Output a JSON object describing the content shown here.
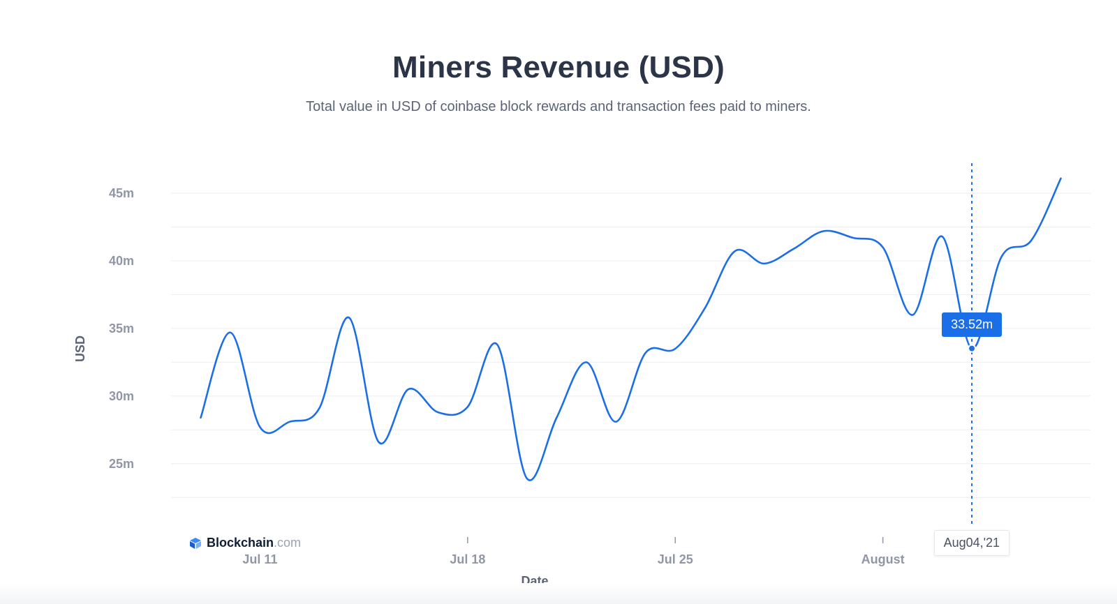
{
  "header": {
    "title": "Miners Revenue (USD)",
    "subtitle": "Total value in USD of coinbase block rewards and transaction fees paid to miners."
  },
  "brand": {
    "name": "Blockchain",
    "suffix": ".com",
    "icon": "blockchain-logo-icon"
  },
  "tooltip": {
    "value_label": "33.52m",
    "date_label": "Aug04,'21",
    "date": "2021-08-04",
    "value": 33.52
  },
  "colors": {
    "line": "#1a6fe8",
    "grid": "#eceef1",
    "tooltip_bg": "#1a6fe8"
  },
  "chart_data": {
    "type": "line",
    "title": "Miners Revenue (USD)",
    "xlabel": "Date",
    "ylabel": "USD",
    "ylim": [
      20.5,
      46.5
    ],
    "xlim": [
      "2021-07-08",
      "2021-08-08"
    ],
    "y_ticks": [
      {
        "value": 25,
        "label": "25m"
      },
      {
        "value": 30,
        "label": "30m"
      },
      {
        "value": 35,
        "label": "35m"
      },
      {
        "value": 40,
        "label": "40m"
      },
      {
        "value": 45,
        "label": "45m"
      }
    ],
    "x_ticks": [
      {
        "date": "2021-07-11",
        "label": "Jul 11"
      },
      {
        "date": "2021-07-18",
        "label": "Jul 18"
      },
      {
        "date": "2021-07-25",
        "label": "Jul 25"
      },
      {
        "date": "2021-08-01",
        "label": "August"
      }
    ],
    "grid": true,
    "series": [
      {
        "points": [
          {
            "date": "2021-07-09",
            "value": 28.4
          },
          {
            "date": "2021-07-10",
            "value": 34.7
          },
          {
            "date": "2021-07-11",
            "value": 27.7
          },
          {
            "date": "2021-07-12",
            "value": 28.1
          },
          {
            "date": "2021-07-13",
            "value": 29.1
          },
          {
            "date": "2021-07-14",
            "value": 35.8
          },
          {
            "date": "2021-07-15",
            "value": 26.6
          },
          {
            "date": "2021-07-16",
            "value": 30.5
          },
          {
            "date": "2021-07-17",
            "value": 28.8
          },
          {
            "date": "2021-07-18",
            "value": 29.2
          },
          {
            "date": "2021-07-19",
            "value": 33.8
          },
          {
            "date": "2021-07-20",
            "value": 23.9
          },
          {
            "date": "2021-07-21",
            "value": 28.4
          },
          {
            "date": "2021-07-22",
            "value": 32.5
          },
          {
            "date": "2021-07-23",
            "value": 28.1
          },
          {
            "date": "2021-07-24",
            "value": 33.2
          },
          {
            "date": "2021-07-25",
            "value": 33.5
          },
          {
            "date": "2021-07-26",
            "value": 36.5
          },
          {
            "date": "2021-07-27",
            "value": 40.7
          },
          {
            "date": "2021-07-28",
            "value": 39.8
          },
          {
            "date": "2021-07-29",
            "value": 40.9
          },
          {
            "date": "2021-07-30",
            "value": 42.2
          },
          {
            "date": "2021-07-31",
            "value": 41.7
          },
          {
            "date": "2021-08-01",
            "value": 41.0
          },
          {
            "date": "2021-08-02",
            "value": 36.0
          },
          {
            "date": "2021-08-03",
            "value": 41.8
          },
          {
            "date": "2021-08-04",
            "value": 33.52
          },
          {
            "date": "2021-08-05",
            "value": 40.3
          },
          {
            "date": "2021-08-06",
            "value": 41.5
          },
          {
            "date": "2021-08-07",
            "value": 46.1
          }
        ]
      }
    ]
  }
}
